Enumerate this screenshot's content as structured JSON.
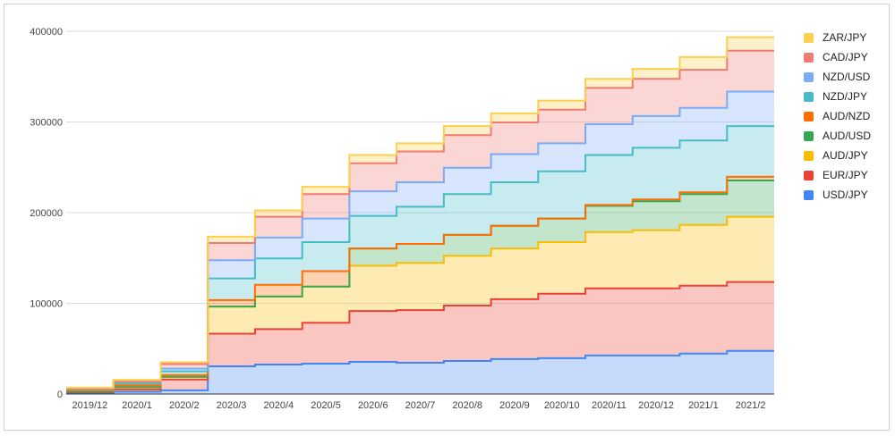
{
  "chart_data": {
    "type": "area",
    "stepped": true,
    "stacked": true,
    "title": "",
    "xlabel": "",
    "ylabel": "",
    "ylim": [
      0,
      400000
    ],
    "yticks": [
      "0",
      "100000",
      "200000",
      "300000",
      "400000"
    ],
    "grid": true,
    "legend_position": "right",
    "categories": [
      "2019/12",
      "2020/1",
      "2020/2",
      "2020/3",
      "2020/4",
      "2020/5",
      "2020/6",
      "2020/7",
      "2020/8",
      "2020/9",
      "2020/10",
      "2020/11",
      "2020/12",
      "2021/1",
      "2021/2"
    ],
    "series": [
      {
        "name": "USD/JPY",
        "color": "#4285f4",
        "values": [
          1000,
          2500,
          4000,
          30500,
          32500,
          33500,
          35500,
          34500,
          36500,
          38500,
          39500,
          42500,
          42500,
          44500,
          47500
        ]
      },
      {
        "name": "EUR/JPY",
        "color": "#ea4335",
        "values": [
          1000,
          2500,
          12000,
          36000,
          39000,
          45000,
          56000,
          58000,
          61000,
          66000,
          71000,
          74000,
          74000,
          75000,
          76000
        ]
      },
      {
        "name": "AUD/JPY",
        "color": "#fbbc04",
        "values": [
          1000,
          2500,
          3000,
          30000,
          36000,
          40000,
          50000,
          52000,
          55000,
          56000,
          57000,
          62000,
          64000,
          67000,
          72000
        ]
      },
      {
        "name": "AUD/USD",
        "color": "#34a853",
        "values": [
          0,
          0,
          0,
          0,
          0,
          0,
          19000,
          21000,
          23000,
          25000,
          26000,
          29000,
          32000,
          34000,
          40000
        ]
      },
      {
        "name": "AUD/NZD",
        "color": "#ff6d01",
        "values": [
          1000,
          2000,
          2000,
          7000,
          13000,
          17000,
          0,
          0,
          0,
          0,
          0,
          1000,
          2000,
          2000,
          4000
        ]
      },
      {
        "name": "NZD/JPY",
        "color": "#46bdc6",
        "values": [
          1000,
          2000,
          4000,
          24000,
          29000,
          32000,
          36000,
          41000,
          45000,
          48000,
          52000,
          55000,
          57000,
          57000,
          56000
        ]
      },
      {
        "name": "NZD/USD",
        "color": "#7baaf7",
        "values": [
          1000,
          2000,
          3000,
          20000,
          23000,
          26000,
          27000,
          27000,
          29000,
          31000,
          31000,
          34000,
          35000,
          36000,
          38000
        ]
      },
      {
        "name": "CAD/JPY",
        "color": "#f07b72",
        "values": [
          0,
          0,
          5000,
          19000,
          23000,
          27000,
          31000,
          34000,
          36000,
          35000,
          37000,
          40000,
          41000,
          42000,
          45000
        ]
      },
      {
        "name": "ZAR/JPY",
        "color": "#fcd04f",
        "values": [
          1000,
          2000,
          2000,
          7000,
          7000,
          8000,
          9000,
          9000,
          10000,
          10000,
          10000,
          10000,
          11000,
          14000,
          15000
        ]
      }
    ]
  }
}
